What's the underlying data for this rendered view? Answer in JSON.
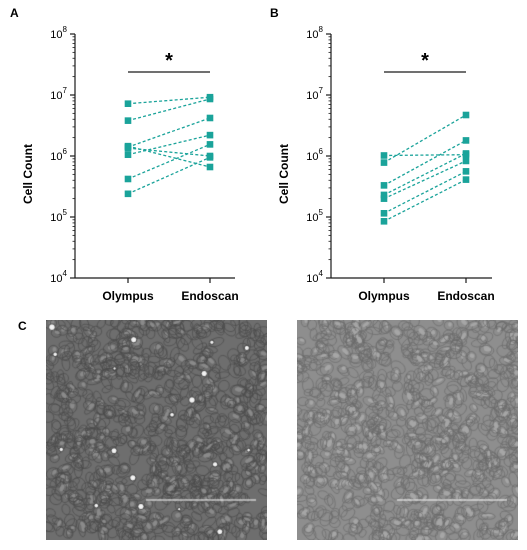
{
  "panel_letters": {
    "a": "A",
    "b": "B",
    "c": "C"
  },
  "colors": {
    "series": "#1aa39a",
    "axis": "#1a1a1a",
    "scale_bar": "#ffffff"
  },
  "micrographs": {
    "left": {
      "description": "Olympus micrograph",
      "tone": "dark-gray"
    },
    "right": {
      "description": "Endoscan micrograph",
      "tone": "light-gray"
    }
  },
  "chart_data": [
    {
      "type": "line",
      "panel": "A",
      "ylabel": "Cell Count",
      "xlabel": "",
      "categories": [
        "Olympus",
        "Endoscan"
      ],
      "y_scale": "log",
      "ylim": [
        10000,
        100000000
      ],
      "y_ticks": [
        {
          "base": "10",
          "exp": "4",
          "value": 10000
        },
        {
          "base": "10",
          "exp": "5",
          "value": 100000
        },
        {
          "base": "10",
          "exp": "6",
          "value": 1000000
        },
        {
          "base": "10",
          "exp": "7",
          "value": 10000000
        },
        {
          "base": "10",
          "exp": "8",
          "value": 100000000
        }
      ],
      "significance": "*",
      "marker": "square",
      "line_style": "dashed",
      "pairs": [
        [
          7200000,
          9200000
        ],
        [
          3800000,
          8600000
        ],
        [
          1400000,
          4200000
        ],
        [
          1350000,
          1000000
        ],
        [
          1050000,
          2200000
        ],
        [
          420000,
          1550000
        ],
        [
          240000,
          950000
        ],
        [
          1450000,
          660000
        ]
      ]
    },
    {
      "type": "line",
      "panel": "B",
      "ylabel": "Cell Count",
      "xlabel": "",
      "categories": [
        "Olympus",
        "Endoscan"
      ],
      "y_scale": "log",
      "ylim": [
        10000,
        100000000
      ],
      "y_ticks": [
        {
          "base": "10",
          "exp": "4",
          "value": 10000
        },
        {
          "base": "10",
          "exp": "5",
          "value": 100000
        },
        {
          "base": "10",
          "exp": "6",
          "value": 1000000
        },
        {
          "base": "10",
          "exp": "7",
          "value": 10000000
        },
        {
          "base": "10",
          "exp": "8",
          "value": 100000000
        }
      ],
      "significance": "*",
      "marker": "square",
      "line_style": "dashed",
      "pairs": [
        [
          1020000,
          1050000
        ],
        [
          780000,
          4700000
        ],
        [
          330000,
          1800000
        ],
        [
          230000,
          1100000
        ],
        [
          200000,
          830000
        ],
        [
          115000,
          560000
        ],
        [
          85000,
          410000
        ]
      ]
    }
  ]
}
